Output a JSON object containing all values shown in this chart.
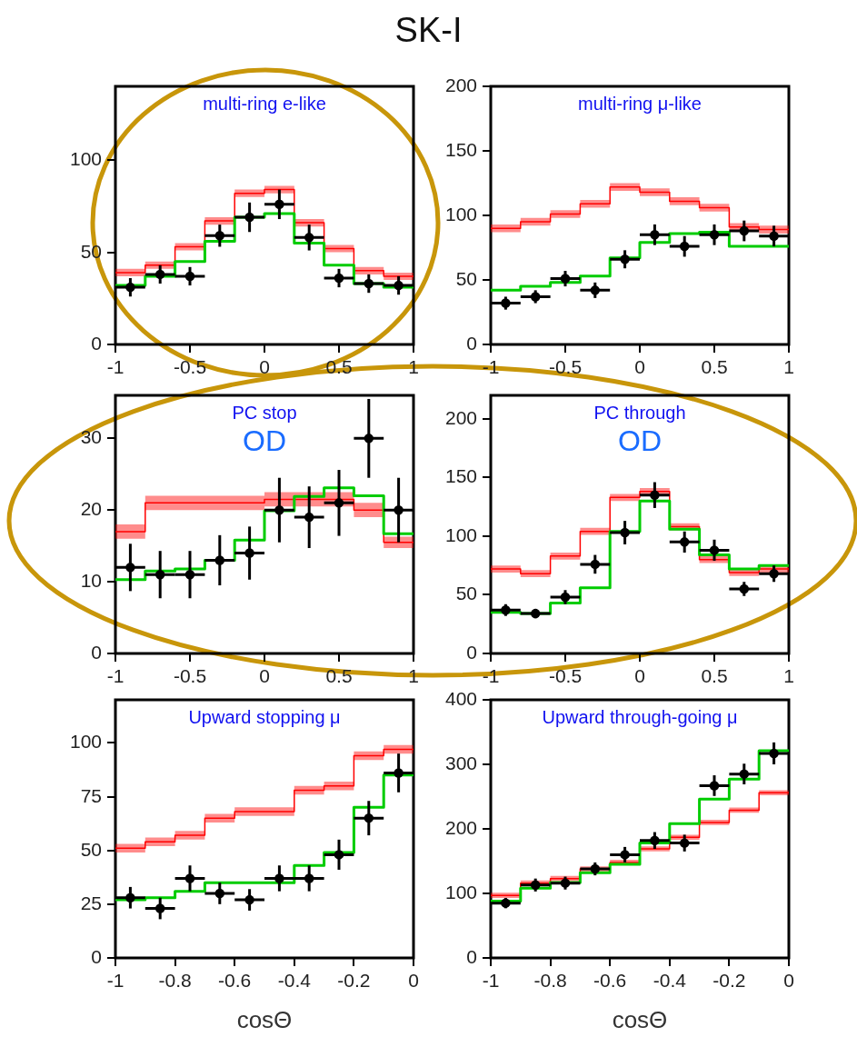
{
  "chart_data": [
    {
      "type": "step",
      "title": "multi-ring e-like",
      "annotations": [
        "SK-I"
      ],
      "x": [
        -0.9,
        -0.7,
        -0.5,
        -0.3,
        -0.1,
        0.1,
        0.3,
        0.5,
        0.7,
        0.9
      ],
      "xlim": [
        -1,
        1
      ],
      "xticks": [
        -1,
        -0.5,
        0,
        0.5,
        1
      ],
      "ylim": [
        0,
        140
      ],
      "yticks": [
        0,
        50,
        100
      ],
      "series": [
        {
          "type": "step",
          "color": "#ff0000",
          "x": [
            -1,
            -0.8,
            -0.6,
            -0.4,
            -0.2,
            0,
            0.2,
            0.4,
            0.6,
            0.8,
            1
          ],
          "values": [
            39,
            43,
            53,
            67,
            82,
            84,
            66,
            52,
            40,
            37,
            37
          ],
          "lower": [
            37,
            41,
            51,
            65,
            80,
            82,
            64,
            50,
            38,
            35,
            35
          ],
          "upper": [
            41,
            45,
            55,
            69,
            84,
            86,
            68,
            54,
            42,
            39,
            39
          ]
        },
        {
          "type": "step",
          "color": "#00cc00",
          "x": [
            -1,
            -0.8,
            -0.6,
            -0.4,
            -0.2,
            0,
            0.2,
            0.4,
            0.6,
            0.8,
            1
          ],
          "values": [
            32,
            37,
            45,
            56,
            69,
            71,
            55,
            43,
            33,
            31,
            31
          ]
        },
        {
          "type": "scatter",
          "marker": "circle",
          "color": "#000000",
          "values": [
            31,
            38,
            37,
            59,
            69,
            76,
            58,
            36,
            33,
            32
          ],
          "errors": [
            5,
            5,
            5,
            6,
            8,
            8,
            7,
            5,
            5,
            5
          ],
          "xerrors": [
            0.1,
            0.1,
            0.1,
            0.1,
            0.1,
            0.1,
            0.1,
            0.1,
            0.1,
            0.1
          ]
        }
      ]
    },
    {
      "type": "step",
      "title": "multi-ring μ-like",
      "x": [
        -0.9,
        -0.7,
        -0.5,
        -0.3,
        -0.1,
        0.1,
        0.3,
        0.5,
        0.7,
        0.9
      ],
      "xlim": [
        -1,
        1
      ],
      "xticks": [
        -1,
        -0.5,
        0,
        0.5,
        1
      ],
      "ylim": [
        0,
        200
      ],
      "yticks": [
        0,
        50,
        100,
        150,
        200
      ],
      "series": [
        {
          "type": "step",
          "color": "#ff0000",
          "x": [
            -1,
            -0.8,
            -0.6,
            -0.4,
            -0.2,
            0,
            0.2,
            0.4,
            0.6,
            0.8,
            1
          ],
          "values": [
            90,
            95,
            101,
            109,
            122,
            118,
            111,
            106,
            91,
            89,
            89
          ],
          "lower": [
            87,
            92,
            98,
            106,
            119,
            115,
            108,
            103,
            88,
            86,
            86
          ],
          "upper": [
            93,
            98,
            104,
            112,
            125,
            121,
            114,
            109,
            94,
            92,
            92
          ]
        },
        {
          "type": "step",
          "color": "#00cc00",
          "x": [
            -1,
            -0.8,
            -0.6,
            -0.4,
            -0.2,
            0,
            0.2,
            0.4,
            0.6,
            0.8,
            1
          ],
          "values": [
            42,
            45,
            48,
            53,
            67,
            79,
            86,
            87,
            76,
            76,
            76
          ]
        },
        {
          "type": "scatter",
          "marker": "circle",
          "color": "#000000",
          "values": [
            32,
            37,
            51,
            42,
            66,
            85,
            76,
            85,
            88,
            84
          ],
          "errors": [
            5,
            5,
            6,
            6,
            7,
            8,
            8,
            8,
            8,
            8
          ],
          "xerrors": [
            0.1,
            0.1,
            0.1,
            0.1,
            0.1,
            0.1,
            0.1,
            0.1,
            0.1,
            0.1
          ]
        }
      ]
    },
    {
      "type": "step",
      "title": "PC stop",
      "annotations": [
        "OD"
      ],
      "x": [
        -0.9,
        -0.7,
        -0.5,
        -0.3,
        -0.1,
        0.1,
        0.3,
        0.5,
        0.7,
        0.9
      ],
      "xlim": [
        -1,
        1
      ],
      "xticks": [
        -1,
        -0.5,
        0,
        0.5,
        1
      ],
      "ylim": [
        0,
        36
      ],
      "yticks": [
        0,
        10,
        20,
        30
      ],
      "series": [
        {
          "type": "step",
          "color": "#ff0000",
          "x": [
            -1,
            -0.8,
            -0.6,
            -0.4,
            -0.2,
            0,
            0.2,
            0.4,
            0.6,
            0.8,
            1
          ],
          "values": [
            17,
            21,
            21,
            21,
            21,
            21.5,
            21.5,
            21.5,
            20,
            15.5,
            15.5
          ],
          "lower": [
            16,
            20,
            20,
            20,
            20,
            20.5,
            20.5,
            20.5,
            19,
            14.7,
            14.7
          ],
          "upper": [
            18,
            22,
            22,
            22,
            22,
            22.5,
            22.5,
            22.5,
            21,
            16.3,
            16.3
          ]
        },
        {
          "type": "step",
          "color": "#00cc00",
          "x": [
            -1,
            -0.8,
            -0.6,
            -0.4,
            -0.2,
            0,
            0.2,
            0.4,
            0.6,
            0.8,
            1
          ],
          "values": [
            10.3,
            11.5,
            11.8,
            13,
            15.8,
            19.9,
            21.9,
            23.1,
            22,
            16.7,
            16.7
          ]
        },
        {
          "type": "scatter",
          "marker": "circle",
          "color": "#000000",
          "values": [
            12,
            11,
            11,
            13,
            14,
            20,
            19,
            21,
            30,
            20
          ],
          "errors": [
            3.3,
            3.3,
            3.3,
            3.5,
            3.7,
            4.5,
            4.3,
            4.6,
            5.5,
            4.5
          ],
          "xerrors": [
            0.1,
            0.1,
            0.1,
            0.1,
            0.1,
            0.1,
            0.1,
            0.1,
            0.1,
            0.1
          ]
        }
      ]
    },
    {
      "type": "step",
      "title": "PC through",
      "annotations": [
        "OD"
      ],
      "x": [
        -0.9,
        -0.7,
        -0.5,
        -0.3,
        -0.1,
        0.1,
        0.3,
        0.5,
        0.7,
        0.9
      ],
      "xlim": [
        -1,
        1
      ],
      "xticks": [
        -1,
        -0.5,
        0,
        0.5,
        1
      ],
      "ylim": [
        0,
        220
      ],
      "yticks": [
        0,
        50,
        100,
        150,
        200
      ],
      "series": [
        {
          "type": "step",
          "color": "#ff0000",
          "x": [
            -1,
            -0.8,
            -0.6,
            -0.4,
            -0.2,
            0,
            0.2,
            0.4,
            0.6,
            0.8,
            1
          ],
          "values": [
            72,
            68,
            83,
            104,
            133,
            138,
            108,
            80,
            69,
            72,
            72
          ],
          "lower": [
            69,
            65,
            80,
            101,
            130,
            135,
            105,
            77,
            66,
            69,
            69
          ],
          "upper": [
            75,
            71,
            86,
            107,
            136,
            141,
            111,
            83,
            72,
            75,
            75
          ]
        },
        {
          "type": "step",
          "color": "#00cc00",
          "x": [
            -1,
            -0.8,
            -0.6,
            -0.4,
            -0.2,
            0,
            0.2,
            0.4,
            0.6,
            0.8,
            1
          ],
          "values": [
            35,
            34,
            43,
            56,
            104,
            130,
            106,
            84,
            72,
            75,
            75
          ]
        },
        {
          "type": "scatter",
          "marker": "circle",
          "color": "#000000",
          "values": [
            37,
            34,
            48,
            76,
            103,
            135,
            95,
            88,
            55,
            68
          ],
          "errors": [
            5,
            4,
            6,
            8,
            10,
            11,
            9,
            9,
            6,
            7
          ],
          "xerrors": [
            0.1,
            0.1,
            0.1,
            0.1,
            0.1,
            0.1,
            0.1,
            0.1,
            0.1,
            0.1
          ]
        }
      ]
    },
    {
      "type": "step",
      "title": "Upward stopping μ",
      "xlabel": "cosΘ",
      "x": [
        -0.95,
        -0.85,
        -0.75,
        -0.65,
        -0.55,
        -0.45,
        -0.35,
        -0.25,
        -0.15,
        -0.05
      ],
      "xlim": [
        -1,
        0
      ],
      "xticks": [
        -1,
        -0.8,
        -0.6,
        -0.4,
        -0.2,
        0
      ],
      "ylim": [
        0,
        120
      ],
      "yticks": [
        0,
        25,
        50,
        75,
        100
      ],
      "series": [
        {
          "type": "step",
          "color": "#ff0000",
          "x": [
            -1,
            -0.9,
            -0.8,
            -0.7,
            -0.6,
            -0.5,
            -0.4,
            -0.3,
            -0.2,
            -0.1,
            0
          ],
          "values": [
            51,
            54,
            57,
            65,
            68,
            68,
            78,
            80,
            94,
            97,
            97
          ],
          "lower": [
            49,
            52,
            55,
            63,
            66,
            66,
            76,
            78,
            92,
            95,
            95
          ],
          "upper": [
            53,
            56,
            59,
            67,
            70,
            70,
            80,
            82,
            96,
            99,
            99
          ]
        },
        {
          "type": "step",
          "color": "#00cc00",
          "x": [
            -1,
            -0.9,
            -0.8,
            -0.7,
            -0.6,
            -0.5,
            -0.4,
            -0.3,
            -0.2,
            -0.1,
            0
          ],
          "values": [
            27,
            28,
            31,
            35,
            35,
            35,
            43,
            49,
            70,
            85,
            85
          ]
        },
        {
          "type": "scatter",
          "marker": "circle",
          "color": "#000000",
          "values": [
            28,
            23,
            37,
            30,
            27,
            37,
            37,
            48,
            65,
            86
          ],
          "errors": [
            5,
            5,
            6,
            5,
            5,
            6,
            6,
            7,
            8,
            9
          ],
          "xerrors": [
            0.05,
            0.05,
            0.05,
            0.05,
            0.05,
            0.05,
            0.05,
            0.05,
            0.05,
            0.05
          ]
        }
      ]
    },
    {
      "type": "step",
      "title": "Upward through-going μ",
      "xlabel": "cosΘ",
      "x": [
        -0.95,
        -0.85,
        -0.75,
        -0.65,
        -0.55,
        -0.45,
        -0.35,
        -0.25,
        -0.15,
        -0.05
      ],
      "xlim": [
        -1,
        0
      ],
      "xticks": [
        -1,
        -0.8,
        -0.6,
        -0.4,
        -0.2,
        0
      ],
      "ylim": [
        0,
        400
      ],
      "yticks": [
        0,
        100,
        200,
        300,
        400
      ],
      "series": [
        {
          "type": "step",
          "color": "#ff0000",
          "x": [
            -1,
            -0.9,
            -0.8,
            -0.7,
            -0.6,
            -0.5,
            -0.4,
            -0.3,
            -0.2,
            -0.1,
            0
          ],
          "values": [
            97,
            116,
            123,
            138,
            148,
            169,
            187,
            210,
            229,
            256,
            256
          ],
          "lower": [
            93,
            112,
            119,
            134,
            144,
            165,
            183,
            206,
            225,
            252,
            252
          ],
          "upper": [
            101,
            120,
            127,
            142,
            152,
            173,
            191,
            214,
            233,
            260,
            260
          ]
        },
        {
          "type": "step",
          "color": "#00cc00",
          "x": [
            -1,
            -0.9,
            -0.8,
            -0.7,
            -0.6,
            -0.5,
            -0.4,
            -0.3,
            -0.2,
            -0.1,
            0
          ],
          "values": [
            88,
            108,
            117,
            132,
            145,
            178,
            208,
            246,
            277,
            321,
            321
          ]
        },
        {
          "type": "scatter",
          "marker": "circle",
          "color": "#000000",
          "values": [
            85,
            113,
            116,
            138,
            160,
            182,
            178,
            267,
            285,
            317
          ],
          "errors": [
            8,
            10,
            10,
            10,
            12,
            13,
            13,
            16,
            16,
            17
          ],
          "xerrors": [
            0.05,
            0.05,
            0.05,
            0.05,
            0.05,
            0.05,
            0.05,
            0.05,
            0.05,
            0.05
          ]
        }
      ]
    }
  ]
}
